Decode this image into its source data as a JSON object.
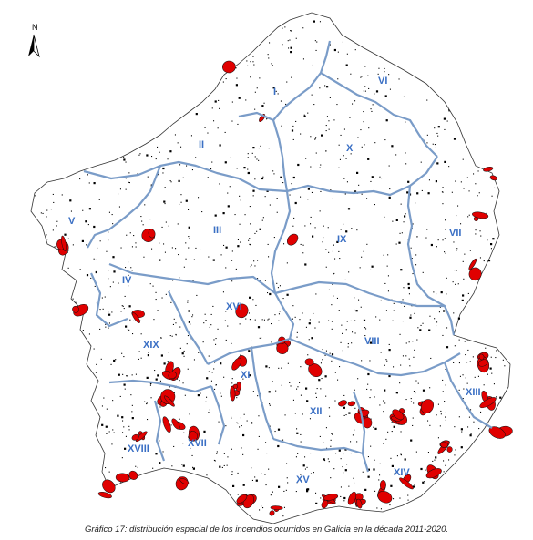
{
  "map": {
    "north_label": "N",
    "colors": {
      "land_fill": "#ffffff",
      "coast": "#333333",
      "boundary": "#7a9cc8",
      "fire": "#e00000",
      "label": "#3a6fc4"
    },
    "regions": [
      {
        "id": "I",
        "label": "I"
      },
      {
        "id": "II",
        "label": "II"
      },
      {
        "id": "III",
        "label": "III"
      },
      {
        "id": "IV",
        "label": "IV"
      },
      {
        "id": "V",
        "label": "V"
      },
      {
        "id": "VI",
        "label": "VI"
      },
      {
        "id": "VII",
        "label": "VII"
      },
      {
        "id": "VIII",
        "label": "VIII"
      },
      {
        "id": "IX",
        "label": "IX"
      },
      {
        "id": "X",
        "label": "X"
      },
      {
        "id": "XI",
        "label": "XI"
      },
      {
        "id": "XII",
        "label": "XII"
      },
      {
        "id": "XIII",
        "label": "XIII"
      },
      {
        "id": "XIV",
        "label": "XIV"
      },
      {
        "id": "XV",
        "label": "XV"
      },
      {
        "id": "XVI",
        "label": "XVI"
      },
      {
        "id": "XVII",
        "label": "XVII"
      },
      {
        "id": "XVIII",
        "label": "XVIII"
      },
      {
        "id": "XIX",
        "label": "XIX"
      }
    ]
  },
  "caption": "Gráfico 17: distribución espacial de los incendios ocurridos en Galicia en la década 2011-2020."
}
